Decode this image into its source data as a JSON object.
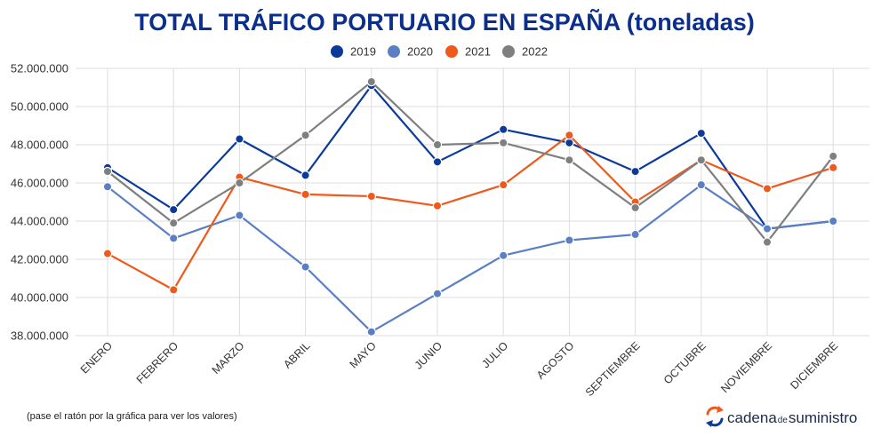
{
  "chart_data": {
    "type": "line",
    "title": "TOTAL TRÁFICO PORTUARIO EN ESPAÑA (toneladas)",
    "xlabel": "",
    "ylabel": "",
    "ylim": [
      38000000,
      52000000
    ],
    "yticks": [
      38000000,
      40000000,
      42000000,
      44000000,
      46000000,
      48000000,
      50000000,
      52000000
    ],
    "ytick_labels": [
      "38.000.000",
      "40.000.000",
      "42.000.000",
      "44.000.000",
      "46.000.000",
      "48.000.000",
      "50.000.000",
      "52.000.000"
    ],
    "categories": [
      "ENERO",
      "FEBRERO",
      "MARZO",
      "ABRIL",
      "MAYO",
      "JUNIO",
      "JULIO",
      "AGOSTO",
      "SEPTIEMBRE",
      "OCTUBRE",
      "NOVIEMBRE",
      "DICIEMBRE"
    ],
    "grid": true,
    "legend_position": "top",
    "series": [
      {
        "name": "2019",
        "color": "#0b3a9a",
        "values": [
          46800000,
          44600000,
          48300000,
          46400000,
          51100000,
          47100000,
          48800000,
          48100000,
          46600000,
          48600000,
          43600000,
          44000000
        ]
      },
      {
        "name": "2020",
        "color": "#5b7fc4",
        "values": [
          45800000,
          43100000,
          44300000,
          41600000,
          38200000,
          40200000,
          42200000,
          43000000,
          43300000,
          45900000,
          43600000,
          44000000
        ]
      },
      {
        "name": "2021",
        "color": "#ee5a1c",
        "values": [
          42300000,
          40400000,
          46300000,
          45400000,
          45300000,
          44800000,
          45900000,
          48500000,
          45000000,
          47200000,
          45700000,
          46800000
        ]
      },
      {
        "name": "2022",
        "color": "#7f7f7f",
        "values": [
          46600000,
          43900000,
          46000000,
          48500000,
          51300000,
          48000000,
          48100000,
          47200000,
          44700000,
          47200000,
          42900000,
          47400000
        ]
      }
    ]
  },
  "footer": {
    "note": "(pase el ratón por la gráfica para ver los valores)",
    "brand_part1": "cadena",
    "brand_part2": "de",
    "brand_part3": "suministro",
    "brand_colors": {
      "arrow_orange": "#ee5a1c",
      "arrow_blue": "#0b3a9a"
    }
  }
}
